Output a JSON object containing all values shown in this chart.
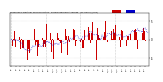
{
  "title": "Milwaukee Weather Wind Direction",
  "subtitle1": "Normalized and Average",
  "subtitle2": "(24 Hours) (Old)",
  "bg_color": "#ffffff",
  "plot_bg_color": "#ffffff",
  "grid_color": "#cccccc",
  "bar_color": "#cc0000",
  "line_color": "#0000cc",
  "num_points": 120,
  "seed": 42,
  "ylim": [
    -7,
    7
  ],
  "legend_norm_color": "#cc0000",
  "legend_avg_color": "#0000cc"
}
